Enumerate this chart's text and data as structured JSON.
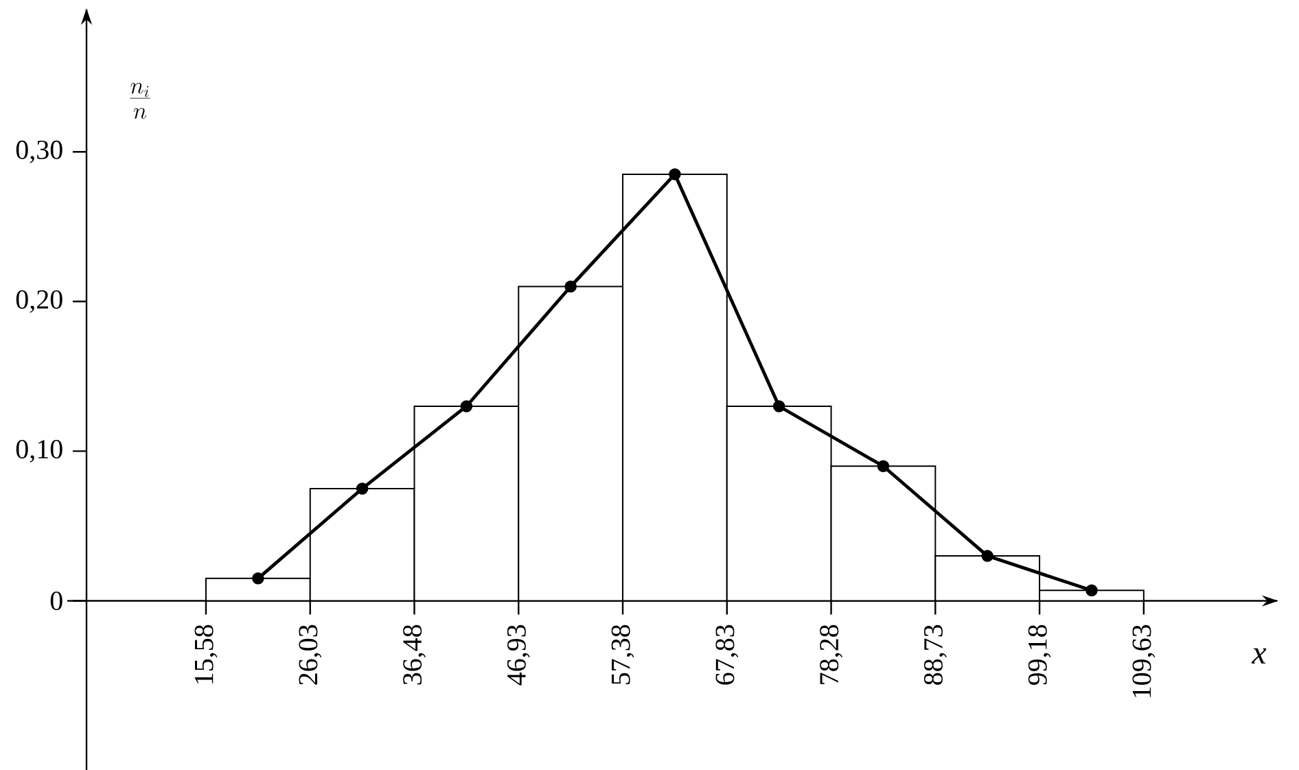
{
  "chart_data": {
    "type": "histogram",
    "xlabel": "x",
    "ylabel": "\\frac{n_i}{n}",
    "bins": [
      15.58,
      26.03,
      36.48,
      46.93,
      57.38,
      67.83,
      78.28,
      88.73,
      99.18,
      109.63
    ],
    "series": [
      {
        "color": "#000000",
        "values": [
          0.015,
          0.075,
          0.13,
          0.21,
          0.285,
          0.13,
          0.09,
          0.03,
          0.007
        ]
      },
      {
        "type": "line",
        "color": "#000000",
        "marker": "circle",
        "x": [
          20.805,
          31.255,
          41.705,
          52.155,
          62.605,
          73.055,
          83.505,
          93.955,
          104.405
        ],
        "values": [
          0.015,
          0.075,
          0.13,
          0.21,
          0.285,
          0.13,
          0.09,
          0.03,
          0.007
        ]
      }
    ],
    "xlim": [
      3.6,
      123
    ],
    "ylim": [
      -0.113,
      0.395
    ],
    "xticks": [
      {
        "value": 15.58,
        "label": "15,58"
      },
      {
        "value": 26.03,
        "label": "26,03"
      },
      {
        "value": 36.48,
        "label": "36,48"
      },
      {
        "value": 46.93,
        "label": "46,93"
      },
      {
        "value": 57.38,
        "label": "57,38"
      },
      {
        "value": 67.83,
        "label": "67,83"
      },
      {
        "value": 78.28,
        "label": "78,28"
      },
      {
        "value": 88.73,
        "label": "88,73"
      },
      {
        "value": 99.18,
        "label": "99,18"
      },
      {
        "value": 109.63,
        "label": "109,63"
      }
    ],
    "yticks": [
      {
        "value": 0,
        "label": "0"
      },
      {
        "value": 0.1,
        "label": "0,10"
      },
      {
        "value": 0.2,
        "label": "0,20"
      },
      {
        "value": 0.3,
        "label": "0,30"
      }
    ],
    "grid": false
  }
}
